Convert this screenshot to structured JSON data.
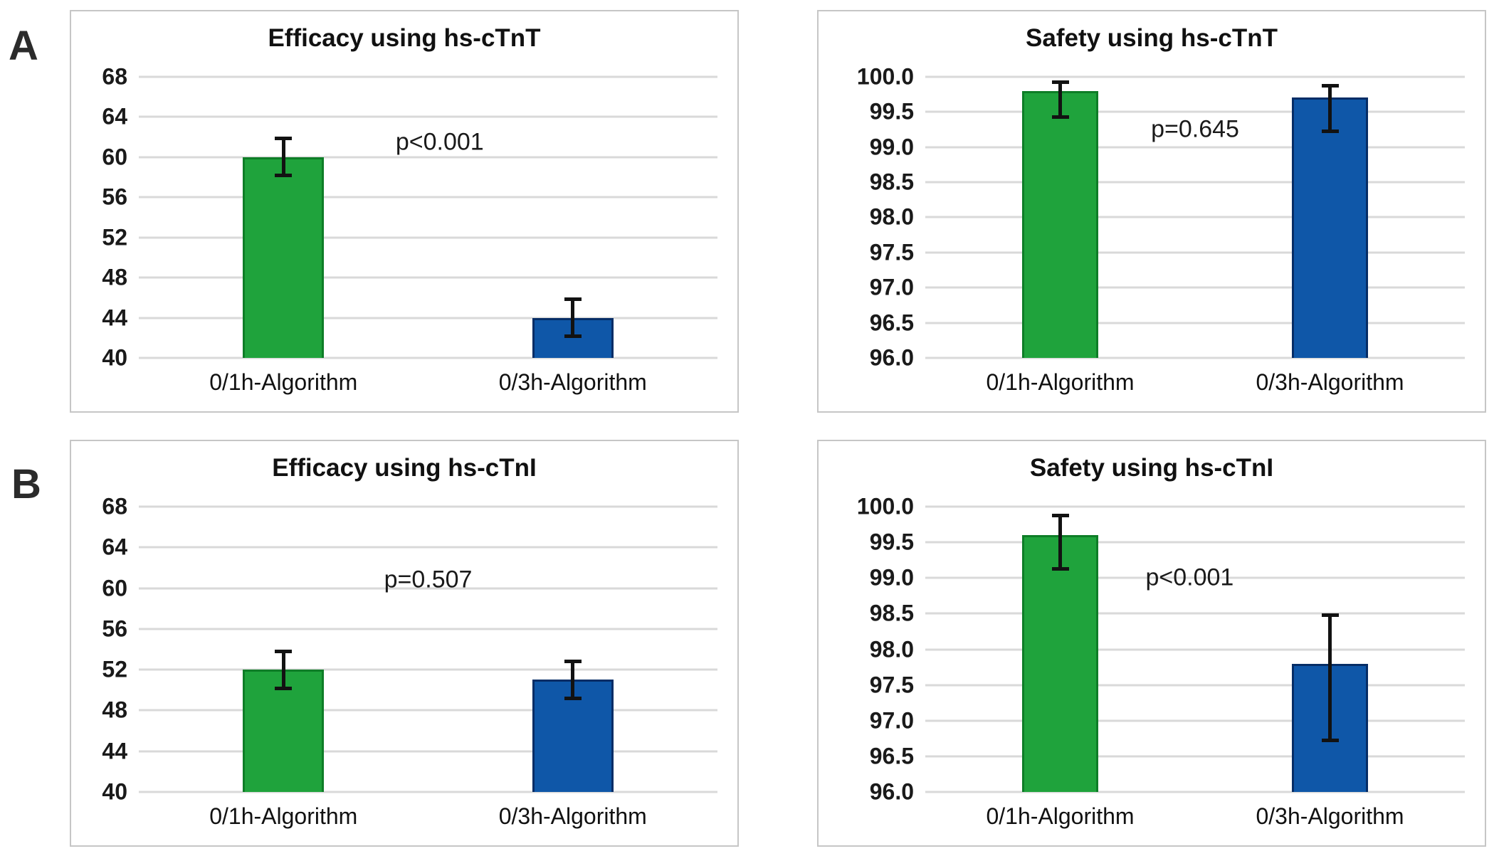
{
  "figure": {
    "panel_labels": [
      "A",
      "B"
    ]
  },
  "colors": {
    "green": {
      "fill": "#1fa33c",
      "border": "#0e7d27"
    },
    "blue": {
      "fill": "#0f57a8",
      "border": "#062d66"
    },
    "gridline": "#d9d9d9",
    "error_bar": "#121212"
  },
  "chart_data": [
    {
      "type": "bar",
      "panel": "A",
      "title": "Efficacy using hs-cTnT",
      "categories": [
        "0/1h-Algorithm",
        "0/3h-Algorithm"
      ],
      "values": [
        60,
        44
      ],
      "error_low": [
        58,
        42
      ],
      "error_high": [
        62,
        46
      ],
      "bar_colors": [
        "green",
        "blue"
      ],
      "ylim": [
        40,
        69.4
      ],
      "yticks": [
        40,
        44,
        48,
        52,
        56,
        60,
        64,
        68
      ],
      "ytick_decimals": 0,
      "grid": true,
      "legend": "none",
      "p_label": {
        "text": "p<0.001",
        "x_pct": 52,
        "y_value": 61.5
      }
    },
    {
      "type": "bar",
      "panel": "A",
      "title": "Safety using hs-cTnT",
      "categories": [
        "0/1h-Algorithm",
        "0/3h-Algorithm"
      ],
      "values": [
        99.8,
        99.7
      ],
      "error_low": [
        99.4,
        99.2
      ],
      "error_high": [
        99.95,
        99.9
      ],
      "bar_colors": [
        "green",
        "blue"
      ],
      "ylim": [
        96,
        100.2
      ],
      "yticks": [
        96,
        96.5,
        97,
        97.5,
        98,
        98.5,
        99,
        99.5,
        100
      ],
      "ytick_decimals": 1,
      "grid": true,
      "legend": "none",
      "p_label": {
        "text": "p=0.645",
        "x_pct": 50,
        "y_value": 99.25
      }
    },
    {
      "type": "bar",
      "panel": "B",
      "title": "Efficacy using hs-cTnI",
      "categories": [
        "0/1h-Algorithm",
        "0/3h-Algorithm"
      ],
      "values": [
        52,
        51
      ],
      "error_low": [
        50,
        49
      ],
      "error_high": [
        54,
        53
      ],
      "bar_colors": [
        "green",
        "blue"
      ],
      "ylim": [
        40,
        69.4
      ],
      "yticks": [
        40,
        44,
        48,
        52,
        56,
        60,
        64,
        68
      ],
      "ytick_decimals": 0,
      "grid": true,
      "legend": "none",
      "p_label": {
        "text": "p=0.507",
        "x_pct": 50,
        "y_value": 60.8
      }
    },
    {
      "type": "bar",
      "panel": "B",
      "title": "Safety using hs-cTnI",
      "categories": [
        "0/1h-Algorithm",
        "0/3h-Algorithm"
      ],
      "values": [
        99.6,
        97.8
      ],
      "error_low": [
        99.1,
        96.7
      ],
      "error_high": [
        99.9,
        98.5
      ],
      "bar_colors": [
        "green",
        "blue"
      ],
      "ylim": [
        96,
        100.2
      ],
      "yticks": [
        96,
        96.5,
        97,
        97.5,
        98,
        98.5,
        99,
        99.5,
        100
      ],
      "ytick_decimals": 1,
      "grid": true,
      "legend": "none",
      "p_label": {
        "text": "p<0.001",
        "x_pct": 49,
        "y_value": 99.0
      }
    }
  ]
}
